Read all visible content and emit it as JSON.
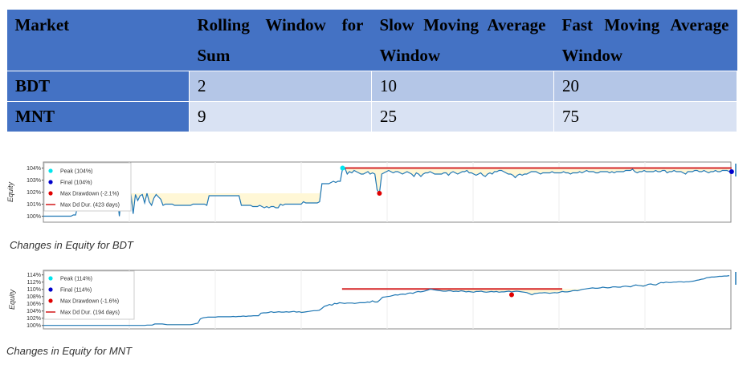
{
  "table": {
    "headers": [
      "Market",
      "Rolling Window for Sum",
      "Slow Moving Average Window",
      "Fast Moving Average Window"
    ],
    "rows": [
      {
        "market": "BDT",
        "rolling": "2",
        "slow": "10",
        "fast": "20"
      },
      {
        "market": "MNT",
        "rolling": "9",
        "slow": "25",
        "fast": "75"
      }
    ],
    "colors": {
      "header": "#4472c4",
      "row_dark": "#b4c6e7",
      "row_light": "#d9e2f3"
    }
  },
  "chart_data": [
    {
      "type": "line",
      "ylabel": "Equity",
      "yticks": [
        "104%",
        "103%",
        "102%",
        "101%",
        "100%"
      ],
      "ylim": [
        99.7,
        104.3
      ],
      "legend": {
        "placement": "top-left",
        "entries": [
          "Peak (104%)",
          "Final (104%)",
          "Max Drawdown (-2.1%)",
          "Max Dd Dur. (423 days)"
        ]
      },
      "colors": {
        "line": "#1f77b4",
        "peak": "#00e5ee",
        "final": "#0000cc",
        "drawdown": "#e00000",
        "dd_dur": "#d62728",
        "fill": "#fff7d6"
      },
      "series": [
        {
          "values": [
            100.0,
            100.0,
            100.0,
            100.0,
            100.0,
            100.0,
            100.0,
            100.0,
            100.0,
            100.0,
            100.0,
            100.0,
            100.0,
            100.1,
            100.1,
            100.9,
            100.9,
            100.9,
            100.9,
            100.9,
            100.9,
            100.9,
            100.9,
            100.9,
            100.9,
            100.9,
            100.9,
            100.9,
            100.9,
            100.9,
            101.8,
            101.9,
            101.8,
            100.0,
            101.9,
            101.7,
            101.0,
            101.9,
            101.9,
            100.2,
            101.8,
            101.3,
            101.7,
            101.8,
            101.1,
            101.9,
            101.2,
            100.9,
            101.5,
            101.8,
            101.6,
            101.4,
            100.9,
            101.0,
            101.0,
            101.0,
            101.0,
            100.9,
            100.9,
            100.9,
            100.9,
            100.9,
            100.9,
            100.9,
            100.9,
            101.0,
            101.0,
            101.0,
            101.0,
            101.0,
            101.0,
            100.9,
            101.7,
            101.7,
            101.7,
            101.7,
            101.7,
            101.7,
            101.7,
            101.7,
            101.7,
            101.7,
            101.7,
            101.7,
            101.7,
            101.7,
            100.9,
            100.9,
            100.9,
            100.9,
            100.9,
            100.8,
            100.8,
            100.8,
            100.9,
            100.8,
            100.7,
            100.8,
            100.7,
            100.8,
            100.8,
            100.7,
            100.7,
            101.0,
            100.9,
            101.0,
            101.0,
            101.0,
            101.0,
            101.0,
            101.0,
            101.0,
            101.0,
            101.2,
            101.1,
            101.1,
            101.1,
            101.1,
            101.1,
            101.1,
            101.2,
            102.7,
            102.7,
            102.7,
            102.7,
            102.8,
            102.9,
            102.8,
            102.9,
            102.9,
            104.0,
            104.0,
            103.5,
            103.7,
            103.6,
            103.8,
            103.7,
            103.6,
            103.5,
            103.5,
            103.6,
            103.7,
            103.5,
            103.6,
            103.5,
            102.2,
            101.9,
            103.5,
            103.6,
            103.7,
            103.8,
            103.7,
            103.6,
            103.7,
            103.7,
            103.6,
            103.5,
            103.6,
            103.7,
            103.6,
            103.5,
            103.3,
            103.6,
            103.5,
            103.3,
            103.5,
            103.6,
            103.6,
            103.7,
            103.6,
            103.5,
            103.5,
            103.5,
            103.5,
            103.6,
            103.6,
            103.4,
            103.6,
            103.7,
            103.6,
            103.5,
            103.6,
            103.7,
            103.7,
            103.8,
            103.6,
            103.6,
            103.5,
            103.4,
            103.5,
            103.6,
            103.4,
            103.3,
            103.5,
            103.6,
            103.5,
            103.7,
            103.7,
            103.8,
            103.8,
            103.7,
            103.6,
            103.5,
            103.5,
            103.4,
            103.2,
            103.4,
            103.5,
            103.4,
            103.5,
            103.5,
            103.6,
            103.7,
            103.7,
            103.7,
            103.6,
            103.5,
            103.6,
            103.6,
            103.6,
            103.6,
            103.7,
            103.6,
            103.6,
            103.6,
            103.6,
            103.7,
            103.6,
            103.6,
            103.5,
            103.6,
            103.6,
            103.6,
            103.7,
            103.6,
            103.7,
            103.8,
            103.7,
            103.7,
            103.7,
            103.6,
            103.6,
            103.7,
            103.7,
            103.7,
            103.7,
            103.6,
            103.7,
            103.6,
            103.7,
            103.7,
            103.7,
            103.7,
            103.8,
            103.8,
            103.8,
            103.9,
            103.7,
            103.6,
            103.7,
            103.7,
            103.8,
            103.7,
            103.7,
            103.7,
            103.7,
            103.8,
            103.7,
            103.7,
            103.8,
            103.8,
            103.6,
            103.7,
            103.7,
            103.8,
            103.7,
            103.7,
            103.7,
            103.6,
            103.5,
            103.7,
            103.7,
            103.7,
            103.8,
            103.8,
            103.7,
            103.7,
            103.8,
            103.7,
            103.6,
            103.7,
            103.7,
            103.8,
            103.7,
            103.7,
            103.8,
            103.8,
            103.8,
            103.7
          ]
        }
      ],
      "markers": {
        "peak": {
          "index": 130,
          "value": 104.0
        },
        "final": {
          "index": 299,
          "value": 103.7
        },
        "drawdown": {
          "index": 146,
          "value": 101.9
        }
      },
      "dd_duration": {
        "start": 130,
        "end": 299,
        "level": 104.0
      },
      "caption": "Changes in Equity for BDT"
    },
    {
      "type": "line",
      "ylabel": "Equity",
      "yticks": [
        "114%",
        "112%",
        "110%",
        "108%",
        "106%",
        "104%",
        "102%",
        "100%"
      ],
      "ylim": [
        99.5,
        114.6
      ],
      "legend": {
        "placement": "top-left",
        "entries": [
          "Peak (114%)",
          "Final (114%)",
          "Max Drawdown (-1.6%)",
          "Max Dd Dur. (194 days)"
        ]
      },
      "colors": {
        "line": "#1f77b4",
        "peak": "#00e5ee",
        "final": "#0000cc",
        "drawdown": "#e00000",
        "dd_dur": "#d62728",
        "fill": "#fff7d6"
      },
      "series": [
        {
          "values": [
            100.0,
            100.0,
            100.0,
            100.0,
            100.0,
            100.0,
            100.0,
            100.0,
            100.0,
            100.0,
            100.0,
            100.0,
            100.0,
            100.0,
            100.0,
            100.0,
            100.0,
            100.0,
            100.0,
            100.0,
            100.0,
            100.0,
            100.0,
            100.0,
            100.0,
            100.0,
            100.0,
            100.0,
            100.0,
            100.0,
            100.0,
            100.0,
            100.0,
            100.0,
            100.0,
            100.0,
            100.0,
            100.0,
            100.0,
            100.0,
            100.0,
            100.1,
            100.1,
            100.1,
            100.4,
            100.4,
            100.4,
            100.4,
            100.3,
            100.2,
            100.2,
            100.2,
            100.2,
            100.2,
            100.2,
            100.2,
            100.2,
            100.2,
            100.2,
            100.3,
            100.5,
            100.6,
            101.8,
            102.1,
            102.2,
            102.3,
            102.3,
            102.3,
            102.3,
            102.4,
            102.4,
            102.4,
            102.4,
            102.4,
            102.4,
            102.5,
            102.4,
            102.5,
            102.5,
            102.6,
            102.5,
            102.6,
            102.6,
            102.7,
            102.7,
            102.7,
            103.4,
            103.5,
            103.5,
            103.6,
            103.8,
            103.6,
            103.7,
            103.8,
            103.7,
            103.7,
            103.8,
            103.7,
            103.8,
            103.9,
            103.7,
            103.8,
            103.6,
            103.7,
            103.8,
            103.9,
            104.0,
            104.1,
            104.1,
            104.2,
            104.7,
            105.3,
            105.5,
            105.8,
            105.6,
            106.1,
            106.0,
            106.3,
            106.2,
            106.1,
            106.2,
            106.2,
            106.2,
            106.1,
            106.2,
            106.3,
            106.3,
            106.3,
            106.5,
            106.4,
            106.8,
            106.5,
            106.5,
            107.1,
            107.8,
            107.9,
            108.0,
            108.1,
            108.3,
            108.5,
            108.4,
            108.6,
            108.7,
            108.6,
            108.9,
            109.0,
            108.9,
            109.2,
            109.4,
            109.3,
            109.4,
            109.6,
            109.8,
            110.1,
            109.9,
            109.8,
            109.7,
            109.6,
            109.5,
            109.5,
            109.6,
            109.6,
            109.4,
            109.5,
            109.4,
            109.6,
            109.5,
            109.3,
            109.4,
            109.3,
            109.2,
            109.4,
            109.4,
            109.5,
            109.3,
            109.2,
            109.3,
            109.4,
            109.3,
            109.4,
            109.2,
            109.3,
            109.3,
            109.4,
            109.5,
            109.3,
            109.4,
            109.5,
            109.4,
            109.3,
            109.2,
            109.1,
            108.8,
            108.5,
            108.8,
            108.9,
            109.0,
            109.0,
            109.1,
            109.0,
            108.9,
            109.0,
            109.1,
            109.0,
            109.2,
            109.4,
            109.3,
            109.3,
            109.4,
            109.6,
            109.7,
            109.6,
            109.8,
            110.0,
            110.1,
            110.2,
            110.3,
            110.4,
            110.3,
            110.3,
            110.4,
            110.6,
            110.5,
            110.4,
            110.5,
            110.7,
            110.7,
            110.6,
            110.6,
            110.8,
            110.9,
            110.8,
            110.7,
            111.0,
            111.2,
            111.1,
            111.0,
            110.9,
            111.1,
            111.4,
            111.5,
            111.3,
            111.2,
            111.6,
            111.9,
            111.8,
            112.0,
            111.9,
            111.9,
            112.0,
            112.0,
            112.1,
            112.1,
            112.0,
            112.1,
            112.1,
            112.2,
            112.3,
            112.5,
            112.6,
            112.8,
            112.9,
            113.2,
            113.3,
            113.4,
            113.4,
            113.5,
            113.6,
            113.6,
            113.7,
            113.7,
            113.8
          ]
        }
      ],
      "markers": {
        "peak": {
          "index": 279,
          "value": 113.8
        },
        "final": {
          "index": 279,
          "value": 113.8
        },
        "drawdown": {
          "index": 185,
          "value": 108.5
        }
      },
      "dd_duration": {
        "start": 118,
        "end": 205,
        "level": 110.1
      },
      "caption": "Changes in Equity for MNT"
    }
  ]
}
